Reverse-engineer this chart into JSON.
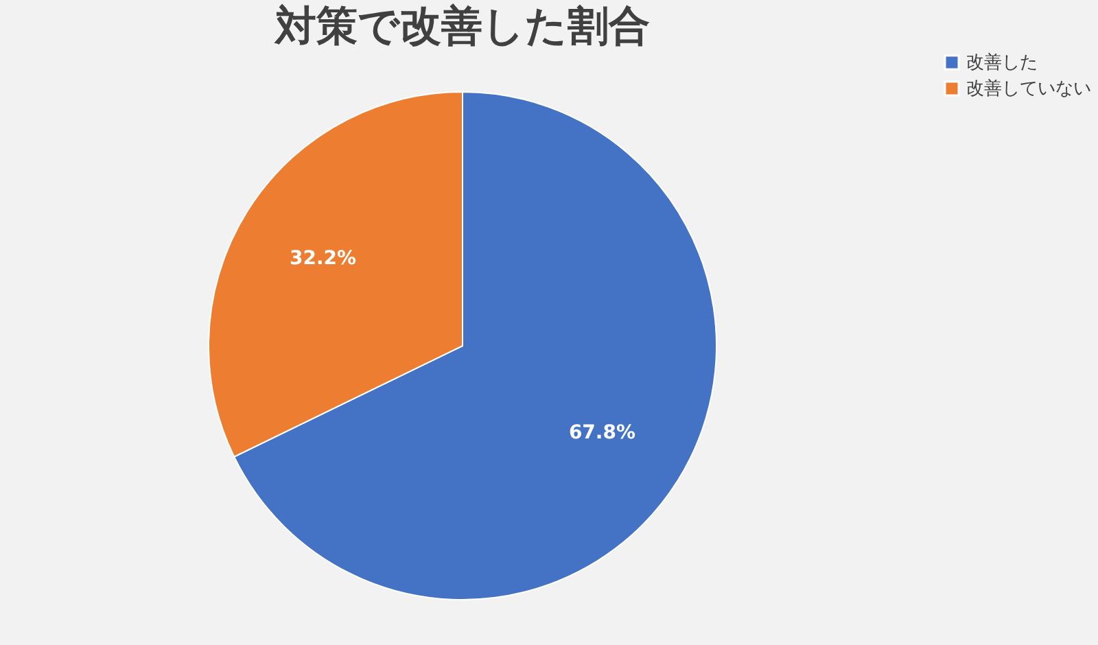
{
  "chart_data": {
    "type": "pie",
    "title": "対策で改善した割合",
    "categories": [
      "改善した",
      "改善していない"
    ],
    "values": [
      67.8,
      32.2
    ],
    "colors": [
      "#4472c4",
      "#ed7d31"
    ],
    "value_labels": [
      "67.8%",
      "32.2%"
    ],
    "legend": "right"
  }
}
